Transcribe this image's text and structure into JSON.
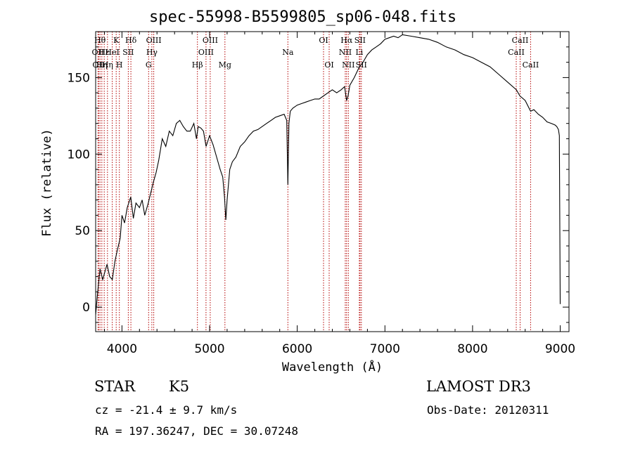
{
  "title": "spec-55998-B5599805_sp06-048.fits",
  "info": {
    "class_label": "STAR",
    "subclass_label": "K5",
    "survey": "LAMOST DR3",
    "cz": "cz = -21.4 ± 9.7 km/s",
    "obs_date": "Obs-Date: 20120311",
    "coords": "RA = 197.36247, DEC =  30.07248"
  },
  "chart_data": {
    "type": "line",
    "title": "spec-55998-B5599805_sp06-048.fits",
    "xlabel": "Wavelength (Å)",
    "ylabel": "Flux (relative)",
    "xlim": [
      3700,
      9100
    ],
    "ylim": [
      -16,
      180
    ],
    "xticks": [
      4000,
      5000,
      6000,
      7000,
      8000,
      9000
    ],
    "yticks": [
      0,
      50,
      100,
      150
    ],
    "series": [
      {
        "color": "#000000",
        "x": [
          3700,
          3720,
          3750,
          3780,
          3800,
          3830,
          3860,
          3890,
          3920,
          3950,
          3980,
          4000,
          4030,
          4060,
          4100,
          4130,
          4160,
          4200,
          4230,
          4260,
          4300,
          4330,
          4360,
          4390,
          4420,
          4460,
          4500,
          4540,
          4580,
          4620,
          4660,
          4700,
          4740,
          4780,
          4820,
          4850,
          4870,
          4900,
          4930,
          4960,
          5000,
          5040,
          5080,
          5120,
          5150,
          5170,
          5185,
          5200,
          5230,
          5260,
          5300,
          5350,
          5400,
          5450,
          5500,
          5550,
          5600,
          5650,
          5700,
          5750,
          5800,
          5850,
          5880,
          5893,
          5905,
          5920,
          5950,
          6000,
          6050,
          6100,
          6150,
          6200,
          6250,
          6300,
          6350,
          6400,
          6450,
          6500,
          6540,
          6563,
          6580,
          6600,
          6650,
          6700,
          6750,
          6800,
          6850,
          6900,
          6950,
          7000,
          7050,
          7100,
          7150,
          7200,
          7300,
          7400,
          7500,
          7600,
          7700,
          7800,
          7900,
          8000,
          8100,
          8200,
          8300,
          8400,
          8500,
          8540,
          8600,
          8662,
          8700,
          8750,
          8800,
          8850,
          8900,
          8940,
          8960,
          8980,
          8990,
          9000
        ],
        "y": [
          -5,
          8,
          25,
          18,
          22,
          28,
          20,
          18,
          30,
          38,
          45,
          60,
          55,
          65,
          72,
          58,
          68,
          65,
          70,
          60,
          68,
          75,
          82,
          88,
          96,
          110,
          105,
          115,
          112,
          120,
          122,
          118,
          115,
          115,
          120,
          110,
          118,
          117,
          115,
          105,
          112,
          106,
          98,
          90,
          85,
          72,
          57,
          70,
          90,
          95,
          98,
          105,
          108,
          112,
          115,
          116,
          118,
          120,
          122,
          124,
          125,
          126,
          122,
          80,
          120,
          128,
          130,
          132,
          133,
          134,
          135,
          136,
          136,
          138,
          140,
          142,
          140,
          142,
          144,
          135,
          138,
          145,
          150,
          156,
          160,
          165,
          168,
          170,
          172,
          175,
          176,
          177,
          176,
          178,
          177,
          176,
          175,
          173,
          170,
          168,
          165,
          163,
          160,
          157,
          152,
          147,
          142,
          138,
          135,
          128,
          129,
          126,
          124,
          121,
          120,
          119,
          118,
          116,
          112,
          2
        ]
      }
    ],
    "lines": [
      {
        "wave": 3727,
        "label": "OII",
        "row": 1
      },
      {
        "wave": 3734,
        "label": "OII",
        "row": 2
      },
      {
        "wave": 3750,
        "label": "Hθ",
        "row": 0
      },
      {
        "wave": 3771,
        "label": "Hη",
        "row": 2
      },
      {
        "wave": 3798,
        "label": "Hε",
        "row": 1
      },
      {
        "wave": 3835,
        "label": "Hη",
        "row": 2
      },
      {
        "wave": 3889,
        "label": "HeI",
        "row": 1
      },
      {
        "wave": 3934,
        "label": "K",
        "row": 0
      },
      {
        "wave": 3970,
        "label": "H",
        "row": 2
      },
      {
        "wave": 4072,
        "label": "SII",
        "row": 1
      },
      {
        "wave": 4102,
        "label": "Hδ",
        "row": 0
      },
      {
        "wave": 4304,
        "label": "G",
        "row": 2
      },
      {
        "wave": 4341,
        "label": "Hγ",
        "row": 1
      },
      {
        "wave": 4363,
        "label": "OIII",
        "row": 0
      },
      {
        "wave": 4861,
        "label": "Hβ",
        "row": 2
      },
      {
        "wave": 4959,
        "label": "OIII",
        "row": 1
      },
      {
        "wave": 5007,
        "label": "OIII",
        "row": 0
      },
      {
        "wave": 5175,
        "label": "Mg",
        "row": 2
      },
      {
        "wave": 5893,
        "label": "Na",
        "row": 1
      },
      {
        "wave": 6300,
        "label": "OI",
        "row": 0
      },
      {
        "wave": 6364,
        "label": "OI",
        "row": 2
      },
      {
        "wave": 6548,
        "label": "NII",
        "row": 1
      },
      {
        "wave": 6563,
        "label": "Hα",
        "row": 0
      },
      {
        "wave": 6583,
        "label": "NII",
        "row": 2
      },
      {
        "wave": 6708,
        "label": "Li",
        "row": 1
      },
      {
        "wave": 6716,
        "label": "SII",
        "row": 0
      },
      {
        "wave": 6731,
        "label": "SII",
        "row": 2
      },
      {
        "wave": 8498,
        "label": "CaII",
        "row": 1
      },
      {
        "wave": 8542,
        "label": "CaII",
        "row": 0
      },
      {
        "wave": 8662,
        "label": "CaII",
        "row": 2
      }
    ]
  }
}
